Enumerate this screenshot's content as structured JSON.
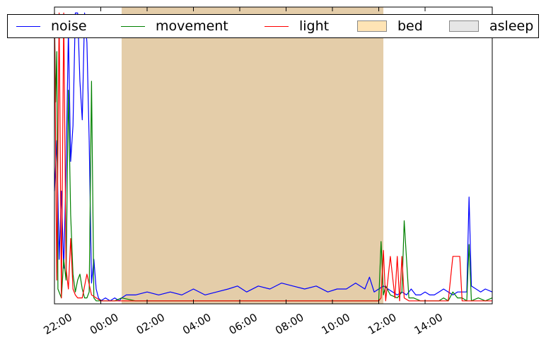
{
  "chart_data": {
    "type": "line",
    "title": "",
    "xlabel": "",
    "ylabel": "",
    "x_ticks": [
      "22:00",
      "00:00",
      "02:00",
      "04:00",
      "06:00",
      "08:00",
      "10:00",
      "12:00",
      "14:00"
    ],
    "x_tick_hours": [
      22,
      24,
      26,
      28,
      30,
      32,
      34,
      36,
      38
    ],
    "xlim_hours": [
      22.0,
      40.9
    ],
    "ylim": [
      0,
      1.0
    ],
    "y_ticks_shown": false,
    "grid": false,
    "legend": {
      "placement": "top",
      "ncol": 5,
      "entries": [
        {
          "label": "noise",
          "kind": "line",
          "color": "#0000ff"
        },
        {
          "label": "movement",
          "kind": "line",
          "color": "#008000"
        },
        {
          "label": "light",
          "kind": "line",
          "color": "#ff0000"
        },
        {
          "label": "bed",
          "kind": "patch",
          "color": "#ffe4b5"
        },
        {
          "label": "asleep",
          "kind": "patch",
          "color": "#e6e6e6"
        }
      ]
    },
    "spans": [
      {
        "name": "bed",
        "start": 24.9,
        "end": 36.2,
        "color": "#ffe4b5"
      },
      {
        "name": "asleep",
        "start": 24.9,
        "end": 36.2,
        "color": "#e6e6e6"
      }
    ],
    "span_overlap_color": "#e4cda9",
    "series": [
      {
        "name": "noise",
        "color": "#0000ff",
        "x": [
          22.0,
          22.1,
          22.2,
          22.3,
          22.4,
          22.5,
          22.6,
          22.7,
          22.8,
          22.9,
          23.0,
          23.1,
          23.2,
          23.3,
          23.4,
          23.5,
          23.6,
          23.7,
          23.8,
          23.9,
          24.0,
          24.2,
          24.4,
          24.6,
          24.8,
          24.9,
          25.1,
          25.5,
          26.0,
          26.5,
          27.0,
          27.5,
          28.0,
          28.5,
          29.0,
          29.5,
          29.9,
          30.3,
          30.8,
          31.3,
          31.8,
          32.3,
          32.8,
          33.3,
          33.8,
          34.2,
          34.6,
          35.0,
          35.4,
          35.6,
          35.8,
          36.0,
          36.2,
          36.4,
          36.6,
          36.8,
          37.0,
          37.2,
          37.4,
          37.6,
          37.8,
          38.0,
          38.2,
          38.4,
          38.6,
          38.8,
          39.0,
          39.2,
          39.4,
          39.6,
          39.8,
          39.9,
          40.0,
          40.2,
          40.4,
          40.6,
          40.9
        ],
        "values": [
          0.38,
          0.55,
          0.15,
          0.38,
          0.12,
          0.45,
          0.92,
          0.48,
          0.6,
          0.98,
          0.98,
          0.75,
          0.62,
          0.98,
          0.88,
          0.55,
          0.07,
          0.15,
          0.05,
          0.02,
          0.01,
          0.02,
          0.01,
          0.02,
          0.01,
          0.02,
          0.03,
          0.03,
          0.04,
          0.03,
          0.04,
          0.03,
          0.05,
          0.03,
          0.04,
          0.05,
          0.06,
          0.04,
          0.06,
          0.05,
          0.07,
          0.06,
          0.05,
          0.06,
          0.04,
          0.05,
          0.05,
          0.07,
          0.05,
          0.09,
          0.04,
          0.05,
          0.06,
          0.05,
          0.04,
          0.03,
          0.04,
          0.03,
          0.05,
          0.03,
          0.03,
          0.04,
          0.03,
          0.03,
          0.04,
          0.05,
          0.04,
          0.03,
          0.04,
          0.04,
          0.04,
          0.36,
          0.06,
          0.05,
          0.04,
          0.05,
          0.04
        ]
      },
      {
        "name": "movement",
        "color": "#008000",
        "x": [
          22.0,
          22.05,
          22.1,
          22.15,
          22.3,
          22.4,
          22.5,
          22.6,
          22.7,
          22.8,
          22.9,
          23.0,
          23.1,
          23.2,
          23.3,
          23.4,
          23.5,
          23.6,
          23.7,
          23.8,
          23.9,
          24.0,
          24.3,
          24.6,
          24.9,
          25.5,
          26.5,
          27.5,
          28.5,
          29.5,
          30.5,
          31.5,
          32.5,
          33.5,
          34.5,
          35.5,
          36.0,
          36.1,
          36.2,
          36.3,
          36.5,
          36.8,
          37.0,
          37.1,
          37.3,
          37.5,
          37.8,
          38.0,
          38.3,
          38.6,
          38.8,
          39.0,
          39.2,
          39.4,
          39.6,
          39.8,
          39.9,
          40.0,
          40.3,
          40.6,
          40.9
        ],
        "values": [
          0.98,
          0.68,
          0.85,
          0.05,
          0.02,
          0.15,
          0.08,
          0.72,
          0.3,
          0.1,
          0.04,
          0.08,
          0.1,
          0.05,
          0.02,
          0.02,
          0.04,
          0.75,
          0.02,
          0.01,
          0.01,
          0.01,
          0.01,
          0.01,
          0.02,
          0.01,
          0.01,
          0.01,
          0.01,
          0.01,
          0.01,
          0.01,
          0.01,
          0.01,
          0.01,
          0.01,
          0.01,
          0.21,
          0.03,
          0.06,
          0.03,
          0.02,
          0.04,
          0.28,
          0.02,
          0.02,
          0.01,
          0.01,
          0.01,
          0.01,
          0.02,
          0.01,
          0.04,
          0.02,
          0.02,
          0.01,
          0.2,
          0.01,
          0.02,
          0.01,
          0.02
        ]
      },
      {
        "name": "light",
        "color": "#ff0000",
        "x": [
          22.0,
          22.1,
          22.2,
          22.3,
          22.4,
          22.5,
          22.6,
          22.7,
          22.8,
          22.9,
          23.0,
          23.2,
          23.4,
          23.6,
          23.8,
          24.0,
          24.5,
          25.0,
          26.0,
          28.0,
          30.0,
          32.0,
          34.0,
          36.0,
          36.1,
          36.2,
          36.3,
          36.5,
          36.7,
          36.8,
          36.9,
          37.0,
          37.1,
          37.3,
          37.6,
          38.0,
          38.5,
          39.0,
          39.2,
          39.3,
          39.5,
          39.6,
          40.0,
          40.5,
          40.9
        ],
        "values": [
          0.98,
          0.08,
          0.98,
          0.02,
          0.98,
          0.12,
          0.05,
          0.22,
          0.05,
          0.03,
          0.02,
          0.02,
          0.1,
          0.03,
          0.02,
          0.01,
          0.01,
          0.01,
          0.01,
          0.01,
          0.01,
          0.01,
          0.01,
          0.01,
          0.02,
          0.18,
          0.01,
          0.16,
          0.02,
          0.16,
          0.01,
          0.16,
          0.02,
          0.01,
          0.01,
          0.01,
          0.01,
          0.01,
          0.16,
          0.16,
          0.16,
          0.01,
          0.01,
          0.01,
          0.01
        ]
      }
    ]
  }
}
